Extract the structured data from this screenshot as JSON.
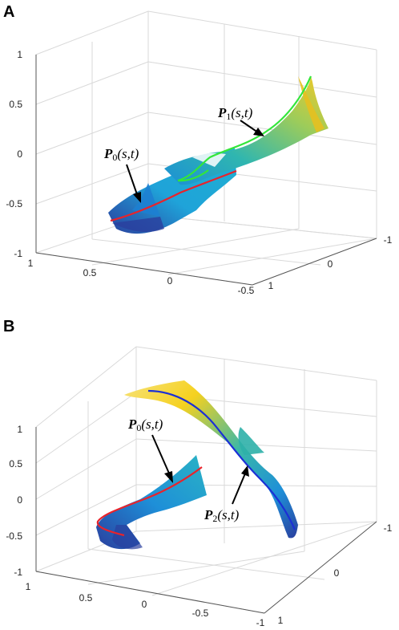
{
  "panels": [
    {
      "letter": "A",
      "z_ticks": [
        "1",
        "0.5",
        "0",
        "-0.5",
        "-1"
      ],
      "x_ticks": [
        "1",
        "0.5",
        "0",
        "-0.5"
      ],
      "y_ticks": [
        "-1",
        "0",
        "1"
      ],
      "labels": [
        {
          "letter": "P",
          "sub": "0",
          "args": "(s,t)"
        },
        {
          "letter": "P",
          "sub": "1",
          "args": "(s,t)"
        }
      ]
    },
    {
      "letter": "B",
      "z_ticks": [
        "1",
        "0.5",
        "0",
        "-0.5",
        "-1"
      ],
      "x_ticks": [
        "1",
        "0.5",
        "0",
        "-0.5",
        "-1"
      ],
      "y_ticks": [
        "-1",
        "0",
        "1"
      ],
      "labels": [
        {
          "letter": "P",
          "sub": "0",
          "args": "(s,t)"
        },
        {
          "letter": "P",
          "sub": "2",
          "args": "(s,t)"
        }
      ]
    }
  ],
  "colors": {
    "surface_dark": "#2a3f9e",
    "surface_mid": "#1fa3d9",
    "surface_teal": "#3ab8a8",
    "surface_yellow": "#f5d11f",
    "curve_red": "#e8232b",
    "curve_green": "#33e63a",
    "curve_blue": "#1b2fd6",
    "grid": "#d9d9d9",
    "axis": "#555555"
  }
}
